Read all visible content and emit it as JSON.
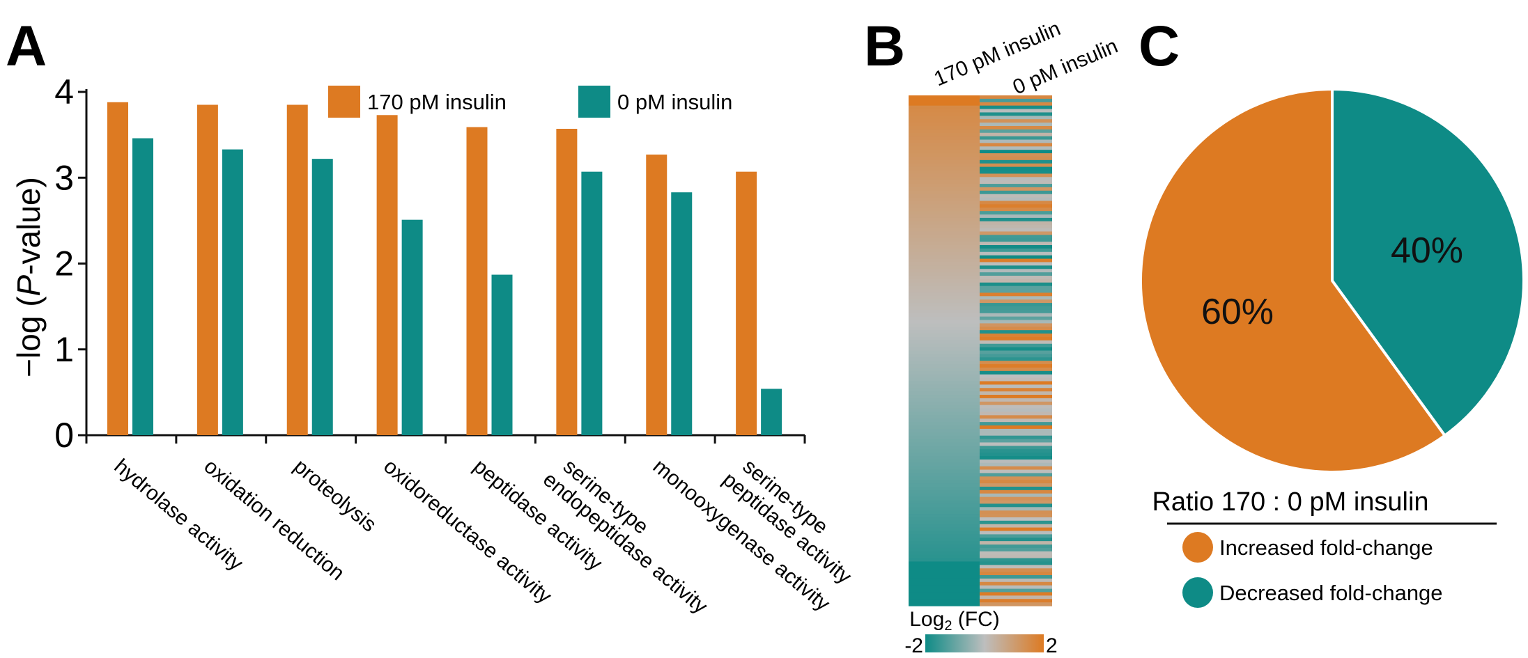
{
  "panels": {
    "a": {
      "letter": "A"
    },
    "b": {
      "letter": "B"
    },
    "c": {
      "letter": "C"
    }
  },
  "colors": {
    "insulin_170": "#DD7A22",
    "insulin_0": "#0E8B86",
    "neutral": "#BDBEBE"
  },
  "chart_data": [
    {
      "type": "bar",
      "panel": "A",
      "title": "",
      "xlabel": "",
      "ylabel_prefix": "−log (",
      "ylabel_italic": "P",
      "ylabel_suffix": "-value)",
      "ylim": [
        0,
        4
      ],
      "yticks": [
        "0",
        "1",
        "2",
        "3",
        "4"
      ],
      "categories": [
        {
          "lines": [
            "hydrolase activity"
          ]
        },
        {
          "lines": [
            "oxidation reduction"
          ]
        },
        {
          "lines": [
            "proteolysis"
          ]
        },
        {
          "lines": [
            "oxidoreductase activity"
          ]
        },
        {
          "lines": [
            "peptidase activity"
          ]
        },
        {
          "lines": [
            "serine-type",
            "endopeptidase activity"
          ]
        },
        {
          "lines": [
            "monooxygenase activity"
          ]
        },
        {
          "lines": [
            "serine-type",
            "peptidase activity"
          ]
        }
      ],
      "series": [
        {
          "name": "170 pM insulin",
          "color": "#DD7A22",
          "values": [
            3.88,
            3.85,
            3.85,
            3.73,
            3.59,
            3.57,
            3.27,
            3.07
          ]
        },
        {
          "name": "0 pM insulin",
          "color": "#0E8B86",
          "values": [
            3.46,
            3.33,
            3.22,
            2.51,
            1.87,
            3.07,
            2.83,
            0.54
          ]
        }
      ],
      "legend": "top"
    },
    {
      "type": "heatmap",
      "panel": "B",
      "columns": [
        "170 pM insulin",
        "0 pM insulin"
      ],
      "colorbar_label": "Log",
      "colorbar_sub": "2",
      "colorbar_suffix": " (FC)",
      "colorbar_min": "-2",
      "colorbar_max": "2",
      "range": [
        -2,
        2
      ],
      "rows": 150
    },
    {
      "type": "pie",
      "panel": "C",
      "title": "Ratio 170 : 0 pM insulin",
      "slices": [
        {
          "label": "Increased fold-change",
          "value": 60,
          "text": "60%",
          "color": "#DD7A22"
        },
        {
          "label": "Decreased fold-change",
          "value": 40,
          "text": "40%",
          "color": "#0E8B86"
        }
      ]
    }
  ]
}
